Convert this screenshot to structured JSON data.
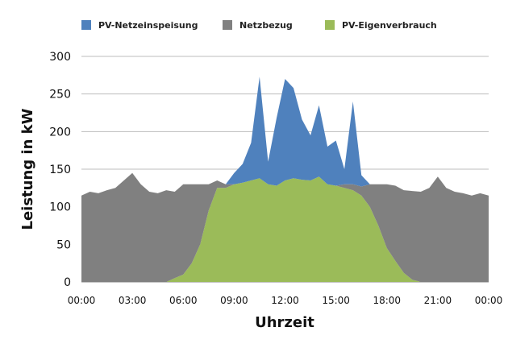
{
  "chart_data": {
    "type": "area",
    "stacked": true,
    "title": "",
    "xlabel": "Uhrzeit",
    "ylabel": "Leistung in kW",
    "ylim": [
      0,
      300
    ],
    "xlim": [
      0,
      24
    ],
    "yticks": [
      "0",
      "50",
      "100",
      "150",
      "200",
      "250",
      "300"
    ],
    "xticks": [
      "00:00",
      "03:00",
      "06:00",
      "09:00",
      "12:00",
      "15:00",
      "18:00",
      "21:00",
      "00:00"
    ],
    "grid": true,
    "legend_position": "top",
    "x_hours": [
      0,
      0.5,
      1,
      1.5,
      2,
      2.5,
      3,
      3.5,
      4,
      4.5,
      5,
      5.5,
      6,
      6.5,
      7,
      7.5,
      8,
      8.5,
      9,
      9.5,
      10,
      10.5,
      11,
      11.5,
      12,
      12.5,
      13,
      13.5,
      14,
      14.5,
      15,
      15.5,
      16,
      16.5,
      17,
      17.5,
      18,
      18.5,
      19,
      19.5,
      20,
      20.5,
      21,
      21.5,
      22,
      22.5,
      23,
      23.5,
      24
    ],
    "series": [
      {
        "name": "PV-Eigenverbrauch",
        "color": "#9bbb59",
        "values": [
          0,
          0,
          0,
          0,
          0,
          0,
          0,
          0,
          0,
          0,
          0,
          5,
          10,
          25,
          50,
          95,
          125,
          125,
          130,
          132,
          135,
          138,
          130,
          128,
          135,
          138,
          136,
          135,
          140,
          130,
          128,
          125,
          122,
          115,
          100,
          75,
          45,
          28,
          12,
          3,
          0,
          0,
          0,
          0,
          0,
          0,
          0,
          0,
          0
        ]
      },
      {
        "name": "Netzbezug",
        "color": "#808080",
        "values": [
          115,
          120,
          118,
          122,
          125,
          135,
          145,
          130,
          120,
          118,
          122,
          115,
          120,
          105,
          80,
          35,
          10,
          5,
          0,
          0,
          0,
          0,
          0,
          0,
          0,
          0,
          0,
          0,
          0,
          0,
          0,
          5,
          8,
          12,
          30,
          55,
          85,
          100,
          110,
          118,
          120,
          125,
          140,
          125,
          120,
          118,
          115,
          118,
          115
        ]
      },
      {
        "name": "PV-Netzeinspeisung",
        "color": "#4f81bd",
        "values": [
          0,
          0,
          0,
          0,
          0,
          0,
          0,
          0,
          0,
          0,
          0,
          0,
          0,
          0,
          0,
          0,
          0,
          0,
          15,
          25,
          50,
          135,
          30,
          90,
          135,
          120,
          80,
          60,
          95,
          50,
          60,
          20,
          110,
          15,
          0,
          0,
          0,
          0,
          0,
          0,
          0,
          0,
          0,
          0,
          0,
          0,
          0,
          0,
          0
        ]
      }
    ]
  },
  "legend": [
    {
      "label": "PV-Netzeinspeisung",
      "color": "#4f81bd"
    },
    {
      "label": "Netzbezug",
      "color": "#808080"
    },
    {
      "label": "PV-Eigenverbrauch",
      "color": "#9bbb59"
    }
  ]
}
